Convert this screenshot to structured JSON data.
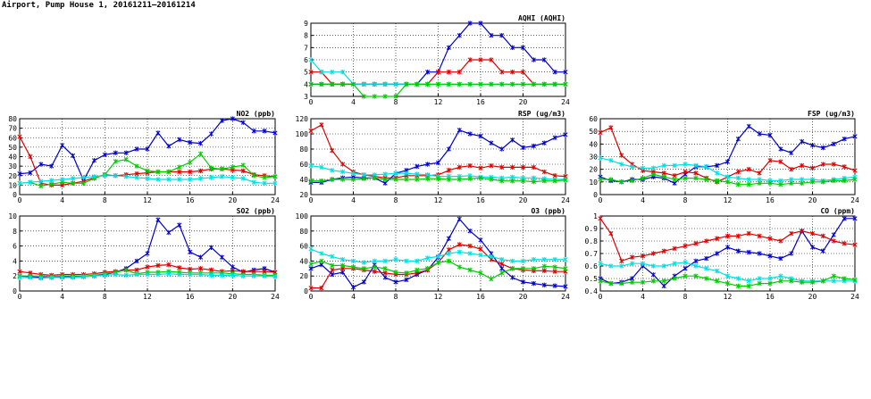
{
  "page": {
    "title": "Airport, Pump House 1, 20161211–20161214"
  },
  "colors": {
    "blue": "#0000cc",
    "red": "#dd0000",
    "cyan": "#00e0e0",
    "green": "#00cc00",
    "grid": "#000000"
  },
  "chart_data": [
    {
      "id": "aqhi",
      "type": "line",
      "title": "AQHI (AQHI)",
      "xlim": [
        0,
        24
      ],
      "xticks": [
        0,
        4,
        8,
        12,
        16,
        20,
        24
      ],
      "ylim": [
        3,
        9
      ],
      "yticks": [
        3,
        4,
        5,
        6,
        7,
        8,
        9
      ],
      "grid": true,
      "series": [
        {
          "color": "blue",
          "values": [
            4,
            4,
            4,
            4,
            4,
            4,
            4,
            4,
            4,
            4,
            4,
            5,
            5,
            7,
            8,
            9,
            9,
            8,
            8,
            7,
            7,
            6,
            6,
            5,
            5
          ]
        },
        {
          "color": "red",
          "values": [
            5,
            5,
            4,
            4,
            4,
            4,
            4,
            4,
            4,
            4,
            4,
            4,
            5,
            5,
            5,
            6,
            6,
            6,
            5,
            5,
            5,
            4,
            4,
            4,
            4
          ]
        },
        {
          "color": "cyan",
          "values": [
            6,
            5,
            5,
            5,
            4,
            4,
            4,
            4,
            4,
            4,
            4,
            4,
            4,
            4,
            4,
            4,
            4,
            4,
            4,
            4,
            4,
            4,
            4,
            4,
            4
          ]
        },
        {
          "color": "green",
          "values": [
            4,
            4,
            4,
            4,
            4,
            3,
            3,
            3,
            3,
            4,
            4,
            4,
            4,
            4,
            4,
            4,
            4,
            4,
            4,
            4,
            4,
            4,
            4,
            4,
            4
          ]
        }
      ]
    },
    {
      "id": "no2",
      "type": "line",
      "title": "NO2 (ppb)",
      "xlim": [
        0,
        24
      ],
      "xticks": [
        0,
        4,
        8,
        12,
        16,
        20,
        24
      ],
      "ylim": [
        0,
        80
      ],
      "yticks": [
        0,
        10,
        20,
        30,
        40,
        50,
        60,
        70,
        80
      ],
      "grid": true,
      "series": [
        {
          "color": "blue",
          "values": [
            22,
            23,
            32,
            30,
            52,
            41,
            15,
            36,
            42,
            44,
            44,
            48,
            48,
            65,
            51,
            58,
            55,
            54,
            64,
            78,
            80,
            76,
            67,
            67,
            65
          ]
        },
        {
          "color": "red",
          "values": [
            61,
            40,
            12,
            10,
            10,
            12,
            14,
            18,
            21,
            20,
            21,
            22,
            23,
            24,
            24,
            24,
            24,
            25,
            27,
            27,
            26,
            25,
            21,
            20,
            19
          ]
        },
        {
          "color": "green",
          "values": [
            12,
            13,
            9,
            11,
            13,
            12,
            12,
            17,
            21,
            35,
            37,
            30,
            25,
            24,
            24,
            29,
            34,
            43,
            28,
            27,
            29,
            31,
            20,
            18,
            19
          ]
        },
        {
          "color": "cyan",
          "values": [
            12,
            13,
            14,
            15,
            16,
            17,
            18,
            19,
            20,
            20,
            19,
            18,
            17,
            16,
            16,
            16,
            16,
            17,
            18,
            19,
            18,
            17,
            13,
            12,
            12
          ]
        }
      ]
    },
    {
      "id": "rsp",
      "type": "line",
      "title": "RSP (ug/m3)",
      "xlim": [
        0,
        24
      ],
      "xticks": [
        0,
        4,
        8,
        12,
        16,
        20,
        24
      ],
      "ylim": [
        20,
        120
      ],
      "yticks": [
        20,
        40,
        60,
        80,
        100,
        120
      ],
      "grid": true,
      "series": [
        {
          "color": "blue",
          "values": [
            36,
            36,
            40,
            42,
            43,
            42,
            42,
            35,
            48,
            52,
            57,
            60,
            62,
            80,
            105,
            100,
            97,
            88,
            80,
            92,
            82,
            84,
            88,
            95,
            99
          ]
        },
        {
          "color": "red",
          "values": [
            104,
            112,
            78,
            60,
            50,
            46,
            44,
            42,
            42,
            45,
            45,
            45,
            46,
            52,
            56,
            58,
            55,
            58,
            56,
            56,
            56,
            56,
            50,
            45,
            44
          ]
        },
        {
          "color": "cyan",
          "values": [
            58,
            56,
            52,
            50,
            48,
            46,
            46,
            47,
            48,
            48,
            47,
            46,
            44,
            44,
            44,
            45,
            43,
            43,
            42,
            43,
            42,
            42,
            41,
            40,
            40
          ]
        },
        {
          "color": "green",
          "values": [
            38,
            38,
            40,
            40,
            40,
            41,
            42,
            40,
            40,
            40,
            40,
            41,
            41,
            40,
            40,
            41,
            42,
            40,
            38,
            38,
            38,
            37,
            38,
            38,
            39
          ]
        }
      ]
    },
    {
      "id": "fsp",
      "type": "line",
      "title": "FSP (ug/m3)",
      "xlim": [
        0,
        24
      ],
      "xticks": [
        0,
        4,
        8,
        12,
        16,
        20,
        24
      ],
      "ylim": [
        0,
        60
      ],
      "yticks": [
        0,
        10,
        20,
        30,
        40,
        50,
        60
      ],
      "grid": true,
      "series": [
        {
          "color": "blue",
          "values": [
            14,
            11,
            10,
            12,
            12,
            14,
            13,
            9,
            16,
            22,
            22,
            23,
            26,
            44,
            54,
            48,
            47,
            36,
            33,
            42,
            39,
            37,
            40,
            44,
            46
          ]
        },
        {
          "color": "red",
          "values": [
            49,
            53,
            31,
            24,
            19,
            18,
            17,
            15,
            18,
            17,
            13,
            10,
            14,
            18,
            20,
            17,
            27,
            26,
            20,
            23,
            21,
            24,
            24,
            22,
            19
          ]
        },
        {
          "color": "cyan",
          "values": [
            29,
            27,
            24,
            22,
            21,
            21,
            23,
            23,
            24,
            23,
            22,
            17,
            14,
            13,
            12,
            12,
            11,
            11,
            12,
            12,
            12,
            11,
            12,
            13,
            14
          ]
        },
        {
          "color": "green",
          "values": [
            12,
            12,
            10,
            11,
            13,
            16,
            14,
            12,
            13,
            13,
            12,
            11,
            10,
            8,
            8,
            9,
            9,
            8,
            9,
            9,
            10,
            10,
            11,
            11,
            12
          ]
        }
      ]
    },
    {
      "id": "so2",
      "type": "line",
      "title": "SO2 (ppb)",
      "xlim": [
        0,
        24
      ],
      "xticks": [
        0,
        4,
        8,
        12,
        16,
        20,
        24
      ],
      "ylim": [
        0,
        10
      ],
      "yticks": [
        0,
        2,
        4,
        6,
        8,
        10
      ],
      "grid": true,
      "series": [
        {
          "color": "blue",
          "values": [
            2,
            1.9,
            1.8,
            1.8,
            1.9,
            1.9,
            1.9,
            2,
            2.2,
            2.5,
            3,
            4,
            5,
            9.5,
            7.8,
            8.8,
            5.2,
            4.5,
            5.8,
            4.5,
            3.2,
            2.5,
            2.8,
            3,
            2.5
          ]
        },
        {
          "color": "red",
          "values": [
            2.6,
            2.4,
            2.2,
            2.1,
            2.2,
            2.2,
            2.2,
            2.3,
            2.5,
            2.6,
            2.8,
            2.8,
            3.2,
            3.4,
            3.5,
            3.1,
            2.9,
            3,
            2.8,
            2.6,
            2.7,
            2.6,
            2.6,
            2.6,
            2.5
          ]
        },
        {
          "color": "green",
          "values": [
            2,
            2,
            2,
            1.9,
            2,
            2,
            2,
            2.1,
            2.3,
            2.5,
            2.8,
            2.3,
            2.5,
            2.5,
            2.6,
            2.5,
            2.4,
            2.4,
            2.4,
            2.4,
            2.3,
            2.2,
            2.2,
            2.1,
            2.1
          ]
        },
        {
          "color": "cyan",
          "values": [
            1.8,
            1.8,
            1.7,
            1.8,
            1.8,
            1.8,
            1.9,
            2,
            2.1,
            2.2,
            2.1,
            2.2,
            2.2,
            2.2,
            2.3,
            2.2,
            2.2,
            2.2,
            2.1,
            2.1,
            2.1,
            2,
            2,
            2,
            1.9
          ]
        }
      ]
    },
    {
      "id": "o3",
      "type": "line",
      "title": "O3 (ppb)",
      "xlim": [
        0,
        24
      ],
      "xticks": [
        0,
        4,
        8,
        12,
        16,
        20,
        24
      ],
      "ylim": [
        0,
        100
      ],
      "yticks": [
        0,
        20,
        40,
        60,
        80,
        100
      ],
      "grid": true,
      "series": [
        {
          "color": "blue",
          "values": [
            30,
            35,
            22,
            25,
            5,
            12,
            35,
            18,
            12,
            15,
            22,
            28,
            45,
            70,
            96,
            80,
            68,
            50,
            30,
            18,
            12,
            10,
            8,
            7,
            6
          ]
        },
        {
          "color": "red",
          "values": [
            4,
            4,
            28,
            30,
            30,
            28,
            26,
            24,
            22,
            22,
            24,
            28,
            38,
            55,
            62,
            60,
            56,
            42,
            36,
            30,
            28,
            27,
            27,
            26,
            26
          ]
        },
        {
          "color": "cyan",
          "values": [
            56,
            50,
            46,
            42,
            40,
            38,
            40,
            40,
            42,
            40,
            40,
            44,
            46,
            50,
            52,
            50,
            48,
            46,
            42,
            40,
            40,
            42,
            42,
            42,
            42
          ]
        },
        {
          "color": "green",
          "values": [
            36,
            40,
            34,
            34,
            32,
            30,
            32,
            30,
            25,
            24,
            28,
            30,
            38,
            40,
            32,
            28,
            24,
            16,
            24,
            30,
            30,
            30,
            33,
            32,
            30
          ]
        }
      ]
    },
    {
      "id": "co",
      "type": "line",
      "title": "CO (ppm)",
      "xlim": [
        0,
        24
      ],
      "xticks": [
        0,
        4,
        8,
        12,
        16,
        20,
        24
      ],
      "ylim": [
        0.4,
        1.0
      ],
      "yticks": [
        0.4,
        0.5,
        0.6,
        0.7,
        0.8,
        0.9,
        1.0
      ],
      "grid": true,
      "series": [
        {
          "color": "blue",
          "values": [
            0.5,
            0.46,
            0.47,
            0.5,
            0.6,
            0.53,
            0.44,
            0.52,
            0.58,
            0.64,
            0.66,
            0.7,
            0.75,
            0.72,
            0.71,
            0.7,
            0.68,
            0.66,
            0.7,
            0.88,
            0.75,
            0.72,
            0.85,
            0.98,
            0.98
          ]
        },
        {
          "color": "red",
          "values": [
            0.98,
            0.86,
            0.64,
            0.67,
            0.68,
            0.7,
            0.72,
            0.74,
            0.76,
            0.78,
            0.8,
            0.82,
            0.84,
            0.84,
            0.86,
            0.84,
            0.82,
            0.8,
            0.86,
            0.88,
            0.86,
            0.84,
            0.8,
            0.78,
            0.77
          ]
        },
        {
          "color": "cyan",
          "values": [
            0.62,
            0.6,
            0.6,
            0.62,
            0.62,
            0.6,
            0.6,
            0.62,
            0.63,
            0.6,
            0.58,
            0.56,
            0.52,
            0.5,
            0.48,
            0.5,
            0.5,
            0.52,
            0.5,
            0.48,
            0.48,
            0.48,
            0.48,
            0.48,
            0.48
          ]
        },
        {
          "color": "green",
          "values": [
            0.48,
            0.46,
            0.46,
            0.47,
            0.47,
            0.48,
            0.48,
            0.5,
            0.52,
            0.52,
            0.5,
            0.48,
            0.46,
            0.44,
            0.44,
            0.46,
            0.46,
            0.48,
            0.48,
            0.47,
            0.47,
            0.48,
            0.52,
            0.5,
            0.49
          ]
        }
      ]
    }
  ]
}
